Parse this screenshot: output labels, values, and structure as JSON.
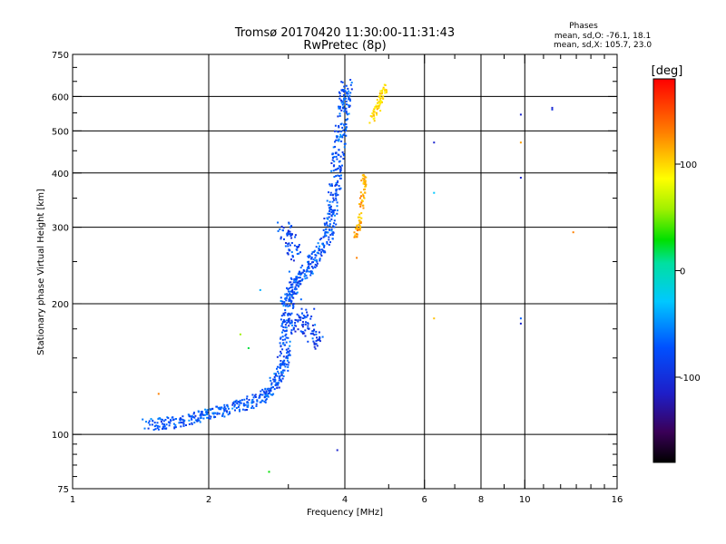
{
  "chart_data": {
    "type": "scatter",
    "title": "Tromsø 20170420 11:30:00-11:31:43",
    "subtitle": "RwPretec (8p)",
    "xlabel": "Frequency [MHz]",
    "ylabel": "Stationary phase Virtual Height [km]",
    "x_scale": "log",
    "y_scale": "log",
    "xlim": [
      1,
      16
    ],
    "ylim": [
      75,
      750
    ],
    "x_ticks": [
      1,
      2,
      4,
      6,
      8,
      10,
      16
    ],
    "x_tick_labels": [
      "1",
      "2",
      "4",
      "6",
      "8",
      "10",
      "16"
    ],
    "x_minor_ticks": [
      3,
      5,
      7,
      9,
      11,
      12,
      13,
      14,
      15
    ],
    "y_ticks": [
      75,
      100,
      200,
      300,
      400,
      500,
      600,
      750
    ],
    "y_tick_labels": [
      "75",
      "100",
      "200",
      "300",
      "400",
      "500",
      "600",
      "750"
    ],
    "y_minor_ticks": [
      80,
      85,
      90,
      95,
      125,
      150,
      175,
      250,
      350,
      450,
      550,
      650,
      700
    ],
    "grid": true,
    "phase_info": {
      "heading": "Phases",
      "line_o": "mean, sd,O: -76.1, 18.1",
      "line_x": "mean, sd,X: 105.7, 23.0"
    },
    "colorbar": {
      "label": "[deg]",
      "range": [
        -180,
        180
      ],
      "ticks": [
        100,
        0,
        -100
      ],
      "tick_labels": [
        "100",
        "0",
        "-100"
      ]
    },
    "trace_o": [
      [
        1.45,
        105
      ],
      [
        1.6,
        106
      ],
      [
        1.75,
        107
      ],
      [
        1.9,
        110
      ],
      [
        2.05,
        112
      ],
      [
        2.2,
        114
      ],
      [
        2.4,
        117
      ],
      [
        2.6,
        121
      ],
      [
        2.75,
        127
      ],
      [
        2.85,
        135
      ],
      [
        2.92,
        145
      ],
      [
        2.96,
        160
      ],
      [
        2.98,
        180
      ],
      [
        3.0,
        200
      ],
      [
        3.05,
        215
      ],
      [
        3.15,
        228
      ],
      [
        3.3,
        240
      ],
      [
        3.45,
        255
      ],
      [
        3.6,
        275
      ],
      [
        3.7,
        300
      ],
      [
        3.75,
        330
      ],
      [
        3.8,
        370
      ],
      [
        3.85,
        420
      ],
      [
        3.9,
        480
      ],
      [
        3.95,
        540
      ],
      [
        4.0,
        600
      ],
      [
        4.05,
        640
      ]
    ],
    "trace_x": [
      [
        4.2,
        285
      ],
      [
        4.3,
        300
      ],
      [
        4.35,
        330
      ],
      [
        4.4,
        370
      ],
      [
        4.42,
        400
      ]
    ],
    "trace_x_upper": [
      [
        4.6,
        530
      ],
      [
        4.7,
        560
      ],
      [
        4.8,
        590
      ],
      [
        4.9,
        630
      ]
    ],
    "branch_points": [
      [
        2.9,
        300
      ],
      [
        3.0,
        290
      ],
      [
        3.1,
        270
      ],
      [
        3.05,
        250
      ],
      [
        3.2,
        180
      ],
      [
        3.4,
        170
      ],
      [
        3.5,
        160
      ],
      [
        3.3,
        190
      ],
      [
        3.1,
        175
      ],
      [
        2.95,
        205
      ]
    ],
    "scattered_points": [
      [
        1.55,
        124,
        140
      ],
      [
        2.35,
        170,
        60
      ],
      [
        2.45,
        158,
        20
      ],
      [
        2.6,
        215,
        -40
      ],
      [
        2.72,
        82,
        30
      ],
      [
        3.85,
        92,
        -110
      ],
      [
        4.25,
        255,
        140
      ],
      [
        6.3,
        470,
        -110
      ],
      [
        6.3,
        360,
        -30
      ],
      [
        6.3,
        185,
        120
      ],
      [
        9.8,
        545,
        -110
      ],
      [
        9.8,
        470,
        130
      ],
      [
        9.8,
        390,
        -110
      ],
      [
        9.8,
        185,
        -70
      ],
      [
        9.8,
        180,
        -110
      ],
      [
        11.5,
        565,
        -110
      ],
      [
        11.5,
        560,
        -100
      ],
      [
        12.8,
        292,
        140
      ]
    ]
  }
}
